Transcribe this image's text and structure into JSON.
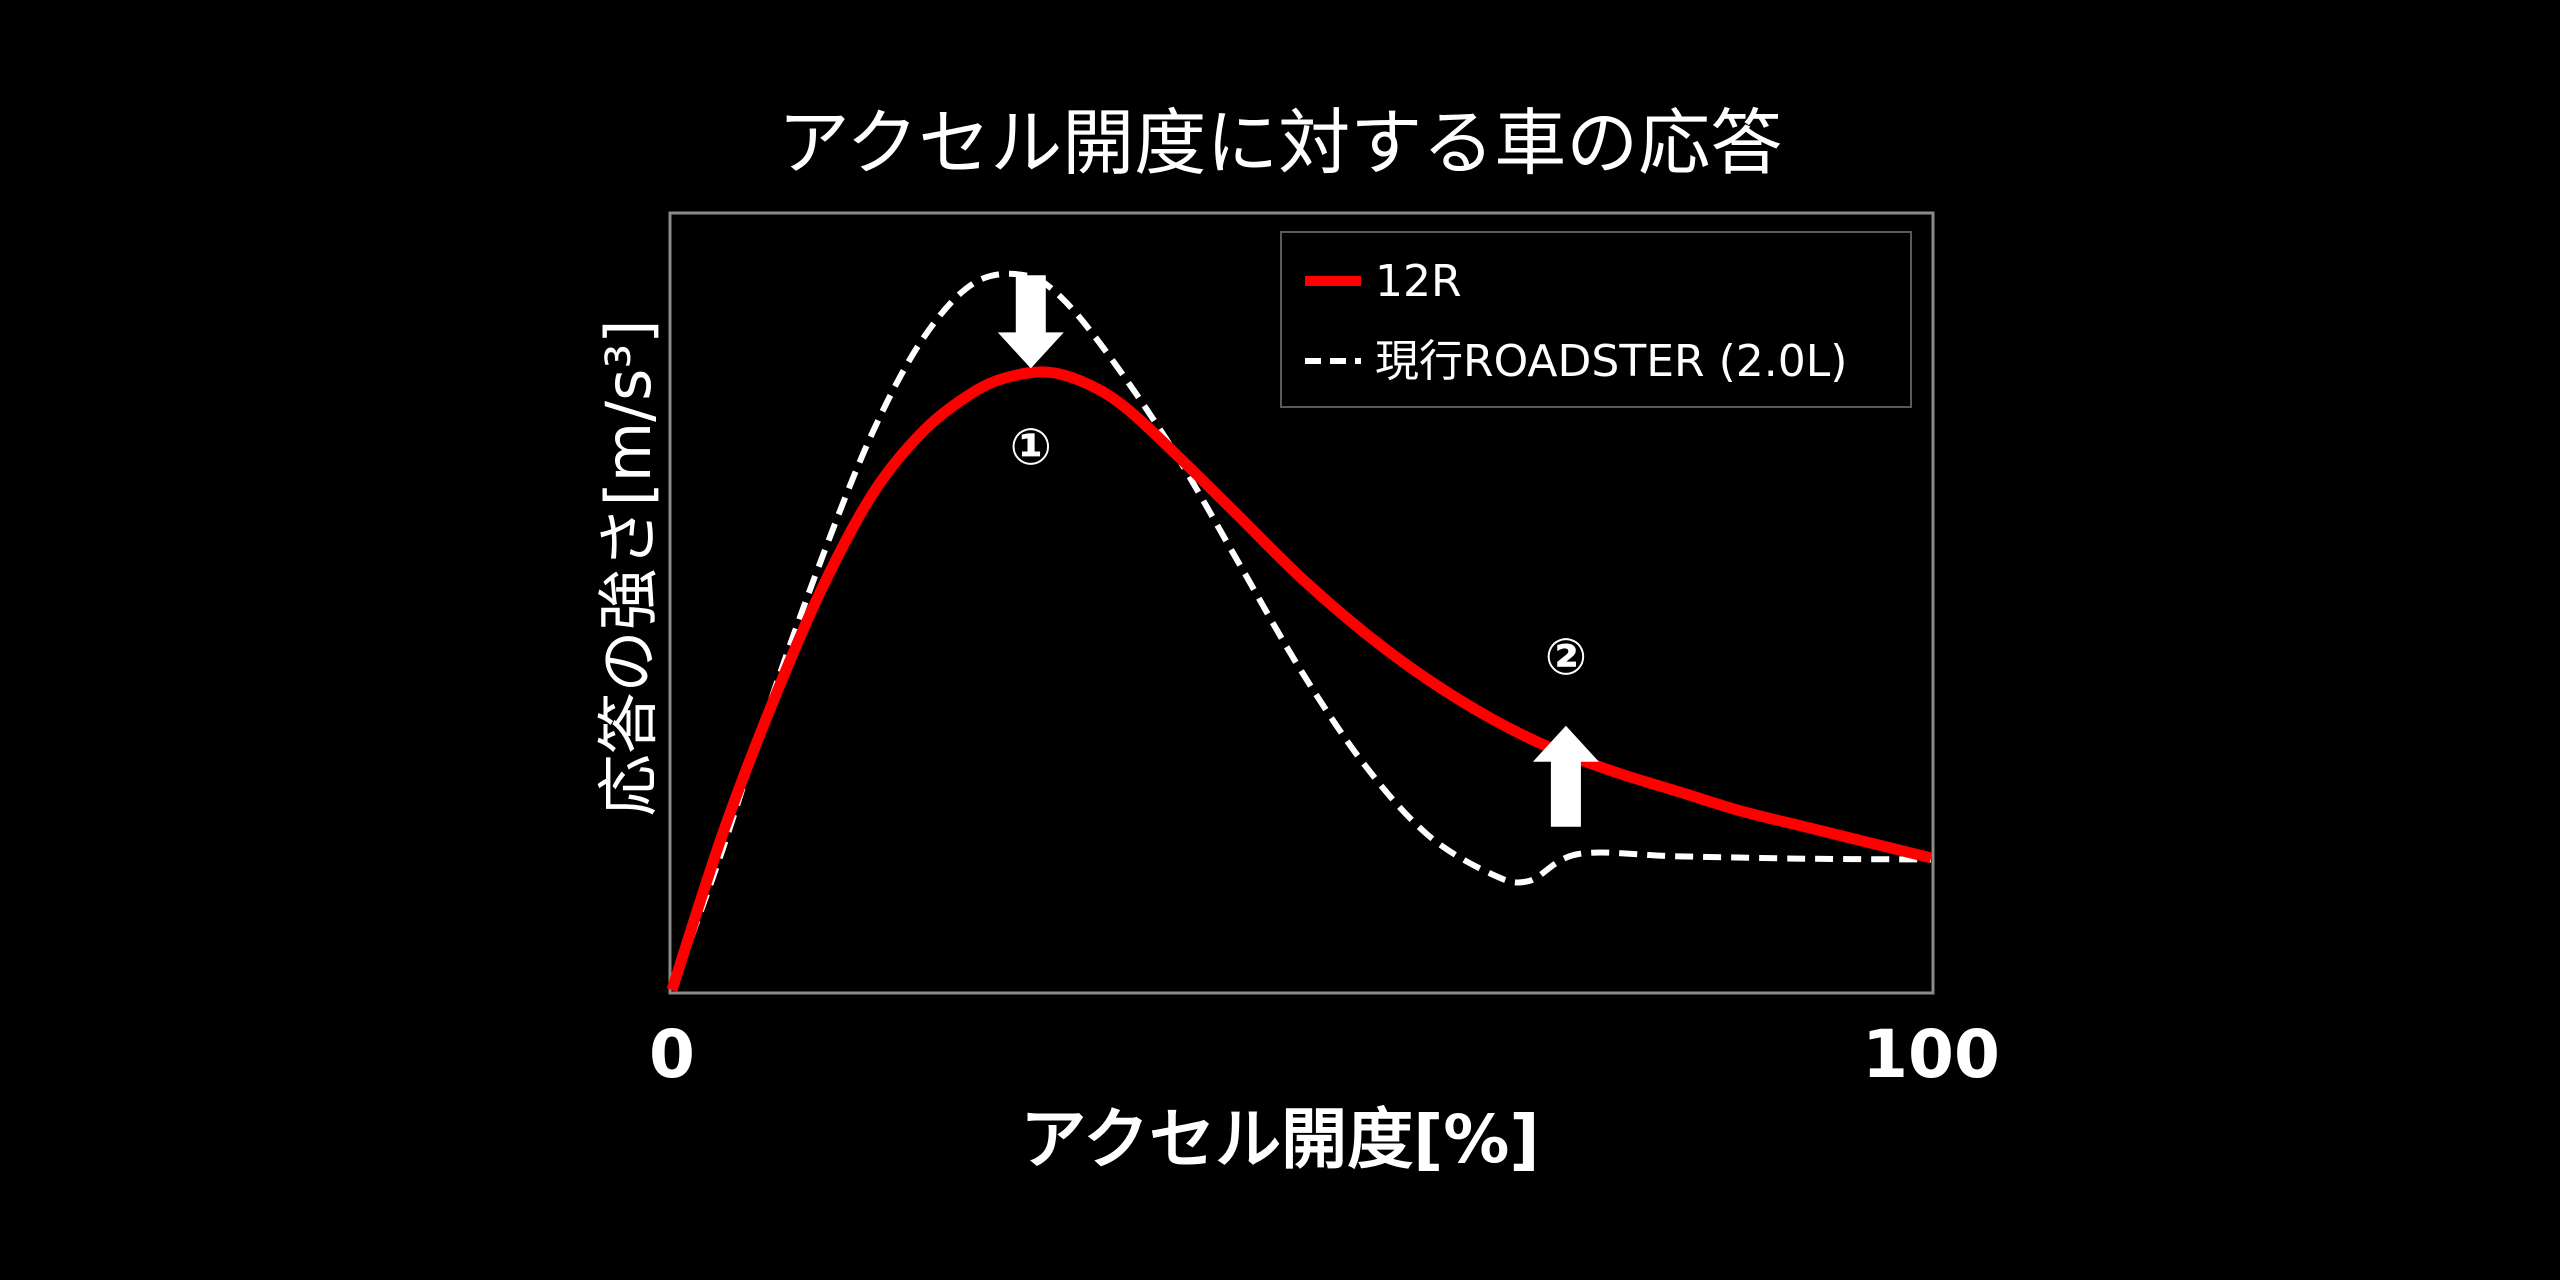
{
  "chart_data": {
    "type": "line",
    "title": "アクセル開度に対する車の応答",
    "xlabel": "アクセル開度[%]",
    "ylabel": "応答の強さ[m/s³]",
    "xlim": [
      0,
      100
    ],
    "x_ticks": [
      "0",
      "100"
    ],
    "grid": false,
    "legend_position": "top-right",
    "series": [
      {
        "name": "12R",
        "style": "solid",
        "color": "#ff0000",
        "points": [
          [
            0,
            0
          ],
          [
            4,
            20
          ],
          [
            8,
            37
          ],
          [
            12,
            52
          ],
          [
            16,
            64
          ],
          [
            20,
            72
          ],
          [
            24,
            77
          ],
          [
            27,
            79
          ],
          [
            30,
            79.5
          ],
          [
            33,
            78
          ],
          [
            36,
            75
          ],
          [
            40,
            69
          ],
          [
            45,
            61
          ],
          [
            50,
            53
          ],
          [
            55,
            46
          ],
          [
            60,
            40
          ],
          [
            65,
            35
          ],
          [
            70,
            31
          ],
          [
            75,
            28
          ],
          [
            80,
            25.5
          ],
          [
            85,
            23
          ],
          [
            90,
            21
          ],
          [
            95,
            19
          ],
          [
            100,
            17
          ]
        ]
      },
      {
        "name": "現行ROADSTER (2.0L)",
        "style": "dashed",
        "color": "#ffffff",
        "points": [
          [
            0,
            0
          ],
          [
            4,
            18
          ],
          [
            8,
            38
          ],
          [
            12,
            56
          ],
          [
            16,
            72
          ],
          [
            20,
            84
          ],
          [
            24,
            91
          ],
          [
            28,
            92
          ],
          [
            31,
            89
          ],
          [
            35,
            81
          ],
          [
            40,
            69
          ],
          [
            45,
            55
          ],
          [
            50,
            41
          ],
          [
            55,
            29
          ],
          [
            60,
            20
          ],
          [
            65,
            15
          ],
          [
            68,
            14
          ],
          [
            72,
            17.5
          ],
          [
            80,
            17.2
          ],
          [
            90,
            16.9
          ],
          [
            100,
            16.8
          ]
        ]
      }
    ],
    "annotations": [
      {
        "label": "①",
        "x": 28.5,
        "y": 70,
        "arrow": "down",
        "arrow_from": 92,
        "arrow_to": 80
      },
      {
        "label": "②",
        "x": 71,
        "y": 43,
        "arrow": "up",
        "arrow_from": 21,
        "arrow_to": 34
      }
    ]
  }
}
